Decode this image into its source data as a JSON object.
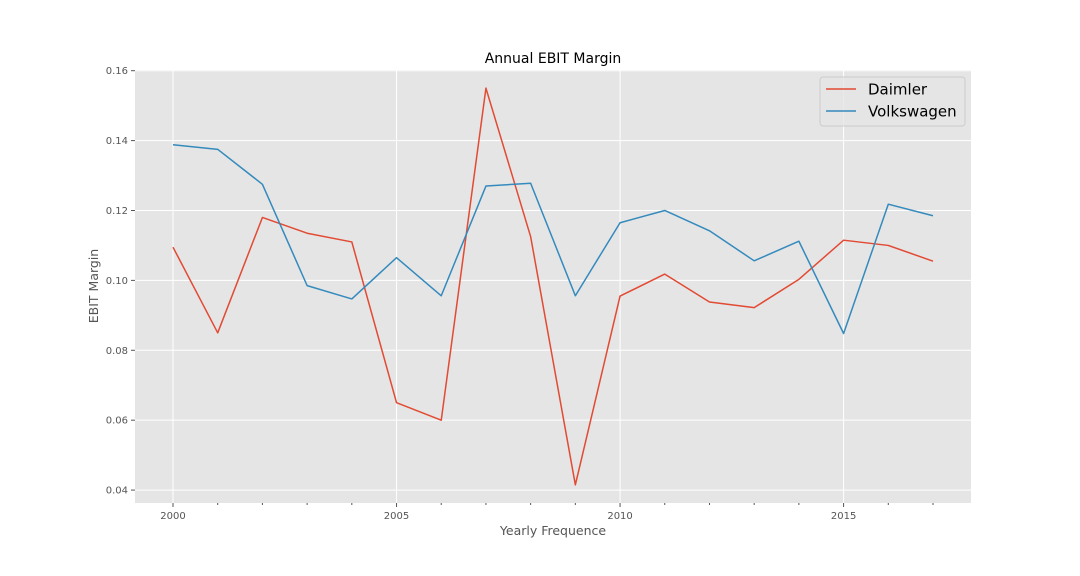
{
  "chart_data": {
    "type": "line",
    "title": "Annual EBIT Margin",
    "xlabel": "Yearly Frequence",
    "ylabel": "EBIT Margin",
    "x": [
      2000,
      2001,
      2002,
      2003,
      2004,
      2005,
      2006,
      2007,
      2008,
      2009,
      2010,
      2011,
      2012,
      2013,
      2014,
      2015,
      2016,
      2017
    ],
    "series": [
      {
        "name": "Daimler",
        "color": "#E24A33",
        "values": [
          0.1095,
          0.085,
          0.118,
          0.1135,
          0.111,
          0.065,
          0.06,
          0.155,
          0.1125,
          0.0415,
          0.0955,
          0.1018,
          0.0938,
          0.0922,
          0.1003,
          0.1115,
          0.11,
          0.1055
        ]
      },
      {
        "name": "Volkswagen",
        "color": "#348ABD",
        "values": [
          0.1388,
          0.1375,
          0.1275,
          0.0985,
          0.0947,
          0.1065,
          0.0956,
          0.127,
          0.1278,
          0.0956,
          0.1165,
          0.12,
          0.1142,
          0.1056,
          0.1112,
          0.0848,
          0.1218,
          0.1185
        ]
      }
    ],
    "xticks": [
      "2000",
      "2005",
      "2010",
      "2015"
    ],
    "yticks": [
      "0.04",
      "0.06",
      "0.08",
      "0.10",
      "0.12",
      "0.14",
      "0.16"
    ],
    "xlim": [
      1999.15,
      2017.85
    ],
    "ylim": [
      0.0363,
      0.1602
    ],
    "grid": true,
    "legend_position": "top-right",
    "plot_background": "#E5E5E5",
    "grid_color": "#FFFFFF"
  }
}
